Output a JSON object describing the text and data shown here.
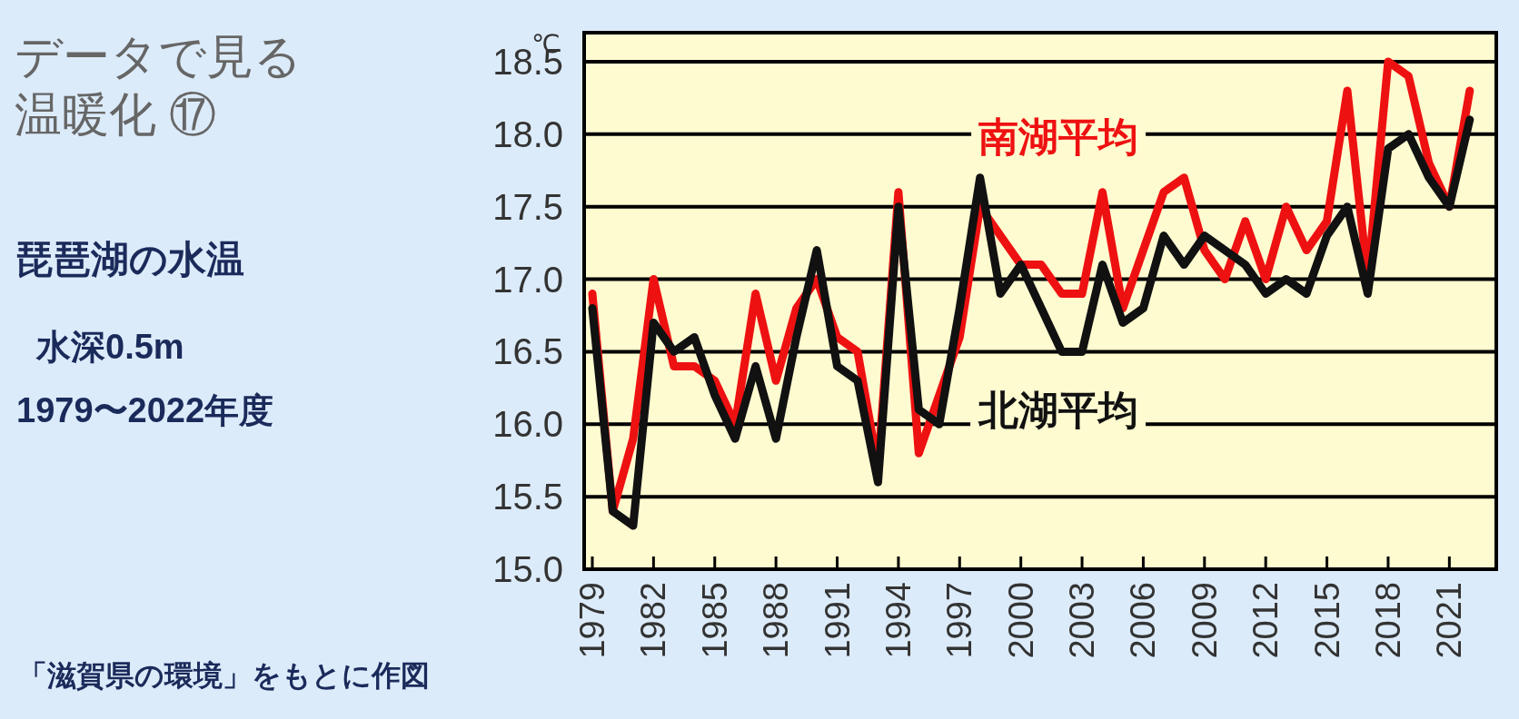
{
  "chart_data": {
    "type": "line",
    "title": "データで見る",
    "subtitle": "温暖化 ⑰",
    "ylabel": "℃",
    "annotations": [
      "琵琶湖の水温",
      "水深0.5m",
      "1979〜2022年度",
      "「滋賀県の環境」をもとに作図"
    ],
    "x": [
      1979,
      1980,
      1981,
      1982,
      1983,
      1984,
      1985,
      1986,
      1987,
      1988,
      1989,
      1990,
      1991,
      1992,
      1993,
      1994,
      1995,
      1996,
      1997,
      1998,
      1999,
      2000,
      2001,
      2002,
      2003,
      2004,
      2005,
      2006,
      2007,
      2008,
      2009,
      2010,
      2011,
      2012,
      2013,
      2014,
      2015,
      2016,
      2017,
      2018,
      2019,
      2020,
      2021,
      2022
    ],
    "series": [
      {
        "name": "南湖平均",
        "color": "#ee1111",
        "values": [
          16.9,
          15.4,
          15.9,
          17.0,
          16.4,
          16.4,
          16.3,
          16.0,
          16.9,
          16.3,
          16.8,
          17.0,
          16.6,
          16.5,
          15.7,
          17.6,
          15.8,
          16.2,
          16.6,
          17.5,
          17.3,
          17.1,
          17.1,
          16.9,
          16.9,
          17.6,
          16.8,
          17.2,
          17.6,
          17.7,
          17.2,
          17.0,
          17.4,
          17.0,
          17.5,
          17.2,
          17.4,
          18.3,
          17.0,
          18.5,
          18.4,
          17.8,
          17.5,
          18.3
        ]
      },
      {
        "name": "北湖平均",
        "color": "#111111",
        "values": [
          16.8,
          15.4,
          15.3,
          16.7,
          16.5,
          16.6,
          16.2,
          15.9,
          16.4,
          15.9,
          16.6,
          17.2,
          16.4,
          16.3,
          15.6,
          17.5,
          16.1,
          16.0,
          16.8,
          17.7,
          16.9,
          17.1,
          16.8,
          16.5,
          16.5,
          17.1,
          16.7,
          16.8,
          17.3,
          17.1,
          17.3,
          17.2,
          17.1,
          16.9,
          17.0,
          16.9,
          17.3,
          17.5,
          16.9,
          17.9,
          18.0,
          17.7,
          17.5,
          18.1
        ]
      }
    ],
    "xlim": [
      1978.6,
      2023.3
    ],
    "xticks": [
      1979,
      1982,
      1985,
      1988,
      1991,
      1994,
      1997,
      2000,
      2003,
      2006,
      2009,
      2012,
      2015,
      2018,
      2021
    ],
    "ylim": [
      15,
      18.7
    ],
    "yticks": [
      {
        "value": 15,
        "label": "15.0"
      },
      15.5,
      {
        "value": 16,
        "label": "16.0"
      },
      16.5,
      {
        "value": 17,
        "label": "17.0"
      },
      17.5,
      {
        "value": 18,
        "label": "18.0"
      },
      18.5
    ],
    "grid": "y",
    "line_style": "solid"
  }
}
